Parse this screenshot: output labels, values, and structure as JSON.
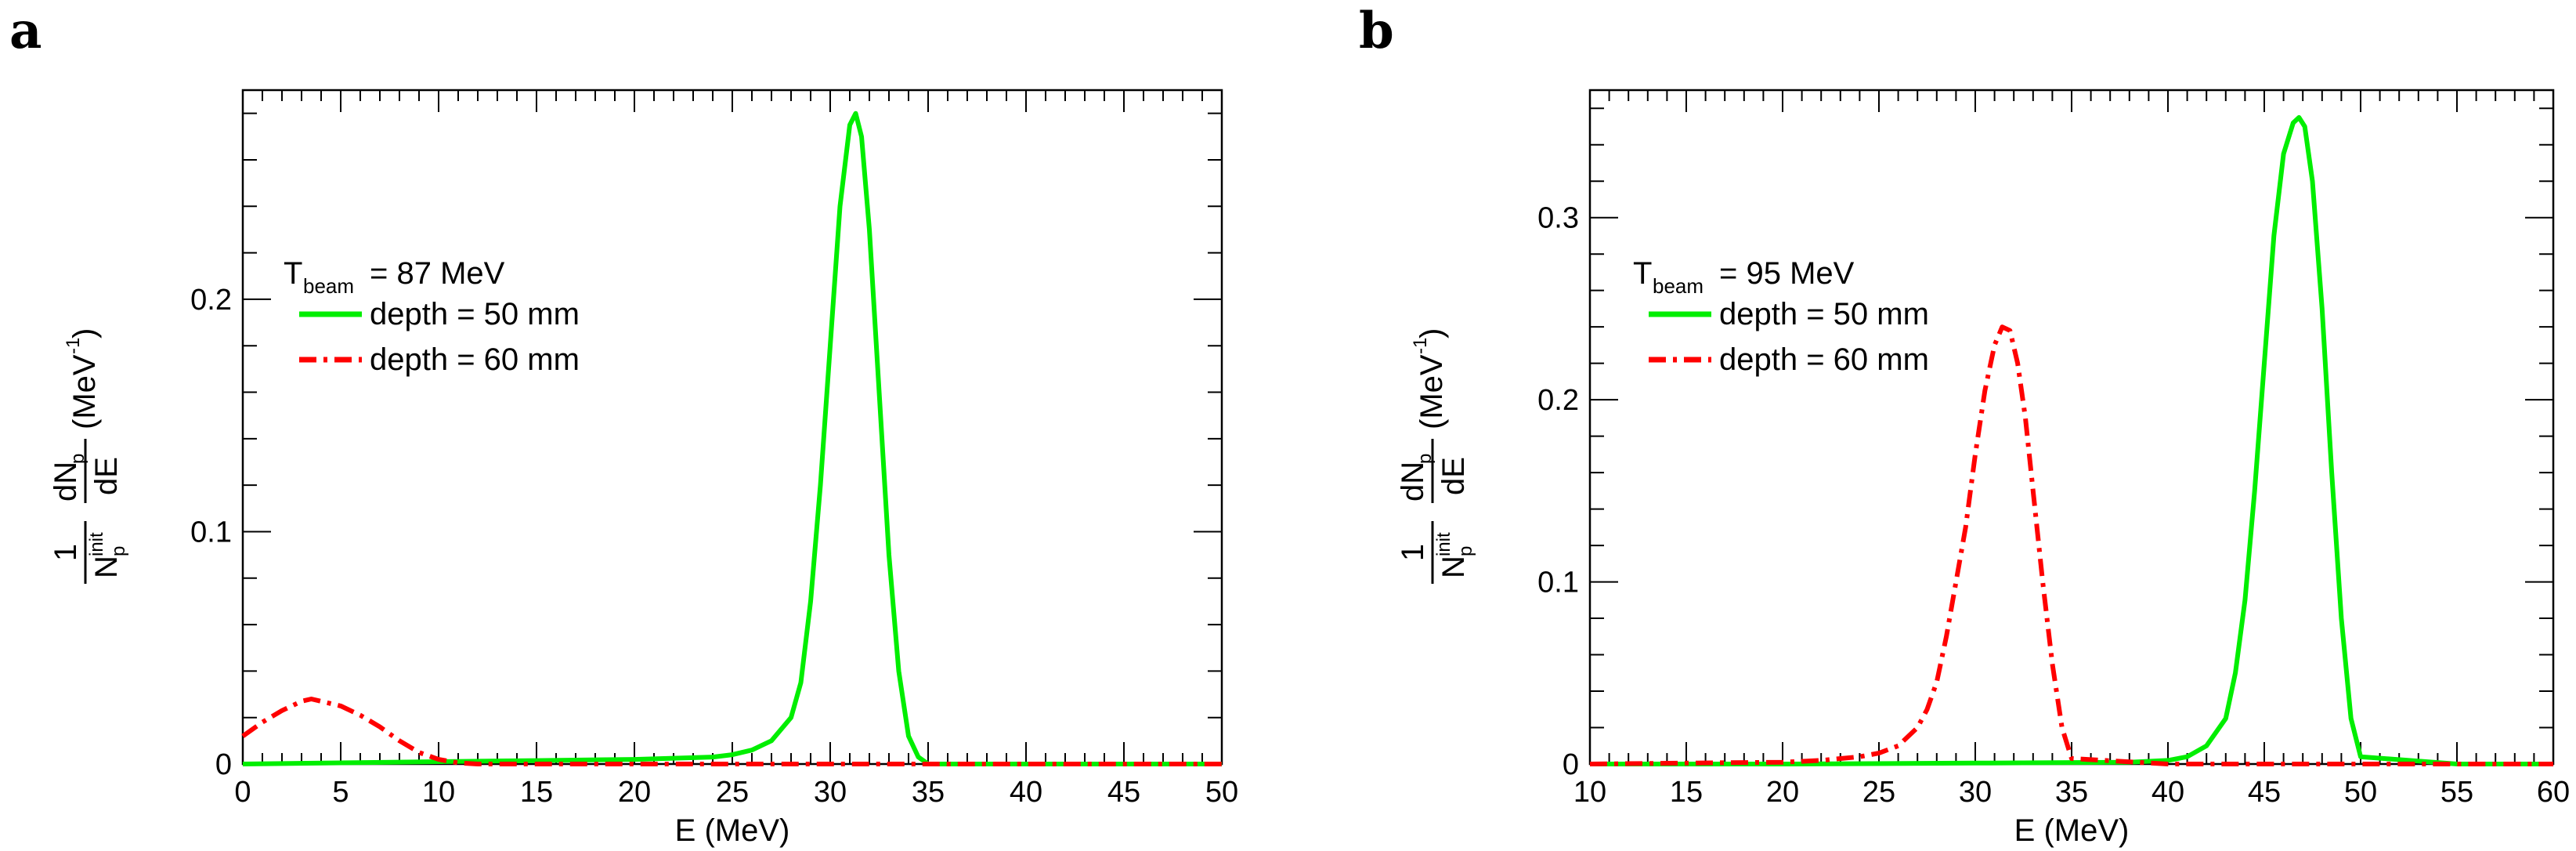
{
  "panels": [
    {
      "letter": "a",
      "chart_data": {
        "type": "line",
        "xlabel": "E (MeV)",
        "ylabel": {
          "numerator": "1",
          "Np_base": "N",
          "Np_sub": "p",
          "init_sup": "init",
          "dNp": "dN",
          "dNp_sub": "p",
          "dE": "dE",
          "units": "(MeV",
          "units_exp": "-1",
          "units_close": ")"
        },
        "xlim": [
          0,
          50
        ],
        "ylim": [
          0,
          0.29
        ],
        "xticks": [
          0,
          5,
          10,
          15,
          20,
          25,
          30,
          35,
          40,
          45,
          50
        ],
        "xtick_labels": [
          "0",
          "5",
          "10",
          "15",
          "20",
          "25",
          "30",
          "35",
          "40",
          "45",
          "50"
        ],
        "yticks": [
          0,
          0.1,
          0.2
        ],
        "ytick_labels": [
          "0",
          "0.1",
          "0.2"
        ],
        "legend": {
          "title_T": "T",
          "title_sub": "beam",
          "title_value": "=  87 MeV",
          "position": "upper-left"
        },
        "series": [
          {
            "name": "depth = 50 mm",
            "color": "#00ee00",
            "style": "solid",
            "x": [
              0,
              5,
              10,
              15,
              20,
              22,
              24,
              25,
              26,
              27,
              28,
              28.5,
              29,
              29.5,
              30,
              30.5,
              31,
              31.3,
              31.6,
              32,
              32.5,
              33,
              33.5,
              34,
              34.5,
              35,
              40,
              45,
              50
            ],
            "y": [
              0.0,
              0.0005,
              0.001,
              0.0015,
              0.002,
              0.0025,
              0.003,
              0.004,
              0.006,
              0.01,
              0.02,
              0.035,
              0.07,
              0.12,
              0.18,
              0.24,
              0.275,
              0.28,
              0.27,
              0.23,
              0.16,
              0.09,
              0.04,
              0.012,
              0.003,
              0.0,
              0.0,
              0.0,
              0.0
            ]
          },
          {
            "name": "depth = 60 mm",
            "color": "#ff0000",
            "style": "dashdot",
            "x": [
              0,
              1,
              2,
              3,
              3.5,
              4,
              5,
              6,
              7,
              8,
              9,
              10,
              11,
              12,
              15,
              20,
              25,
              30,
              35,
              40,
              45,
              50
            ],
            "y": [
              0.012,
              0.018,
              0.023,
              0.027,
              0.028,
              0.027,
              0.025,
              0.021,
              0.016,
              0.01,
              0.005,
              0.002,
              0.0005,
              0.0,
              0.0,
              0.0,
              0.0,
              0.0,
              0.0,
              0.0,
              0.0,
              0.0
            ]
          }
        ]
      }
    },
    {
      "letter": "b",
      "chart_data": {
        "type": "line",
        "xlabel": "E (MeV)",
        "ylabel": {
          "numerator": "1",
          "Np_base": "N",
          "Np_sub": "p",
          "init_sup": "init",
          "dNp": "dN",
          "dNp_sub": "p",
          "dE": "dE",
          "units": "(MeV",
          "units_exp": "-1",
          "units_close": ")"
        },
        "xlim": [
          10,
          60
        ],
        "ylim": [
          0,
          0.37
        ],
        "xticks": [
          10,
          15,
          20,
          25,
          30,
          35,
          40,
          45,
          50,
          55,
          60
        ],
        "xtick_labels": [
          "10",
          "15",
          "20",
          "25",
          "30",
          "35",
          "40",
          "45",
          "50",
          "55",
          "60"
        ],
        "yticks": [
          0,
          0.1,
          0.2,
          0.3
        ],
        "ytick_labels": [
          "0",
          "0.1",
          "0.2",
          "0.3"
        ],
        "legend": {
          "title_T": "T",
          "title_sub": "beam",
          "title_value": "=  95 MeV",
          "position": "upper-left"
        },
        "series": [
          {
            "name": "depth = 50 mm",
            "color": "#00ee00",
            "style": "solid",
            "x": [
              10,
              20,
              30,
              38,
              40,
              41,
              42,
              43,
              43.5,
              44,
              44.5,
              45,
              45.5,
              46,
              46.5,
              46.8,
              47.1,
              47.5,
              48,
              48.5,
              49,
              49.5,
              50,
              55,
              60
            ],
            "y": [
              0.0,
              0.0,
              0.0005,
              0.001,
              0.002,
              0.004,
              0.01,
              0.025,
              0.05,
              0.09,
              0.15,
              0.22,
              0.29,
              0.335,
              0.352,
              0.355,
              0.35,
              0.32,
              0.25,
              0.16,
              0.08,
              0.025,
              0.004,
              0.0,
              0.0
            ]
          },
          {
            "name": "depth = 60 mm",
            "color": "#ff0000",
            "style": "dashdot",
            "x": [
              10,
              15,
              20,
              22,
              24,
              25,
              26,
              27,
              27.5,
              28,
              28.5,
              29,
              29.5,
              30,
              30.5,
              31,
              31.4,
              31.8,
              32.2,
              32.6,
              33,
              33.5,
              34,
              34.5,
              35,
              40,
              50,
              60
            ],
            "y": [
              0.0,
              0.0005,
              0.001,
              0.002,
              0.004,
              0.006,
              0.01,
              0.02,
              0.03,
              0.045,
              0.07,
              0.1,
              0.13,
              0.17,
              0.205,
              0.23,
              0.24,
              0.238,
              0.22,
              0.19,
              0.15,
              0.1,
              0.055,
              0.02,
              0.003,
              0.0,
              0.0,
              0.0
            ]
          }
        ]
      }
    }
  ]
}
